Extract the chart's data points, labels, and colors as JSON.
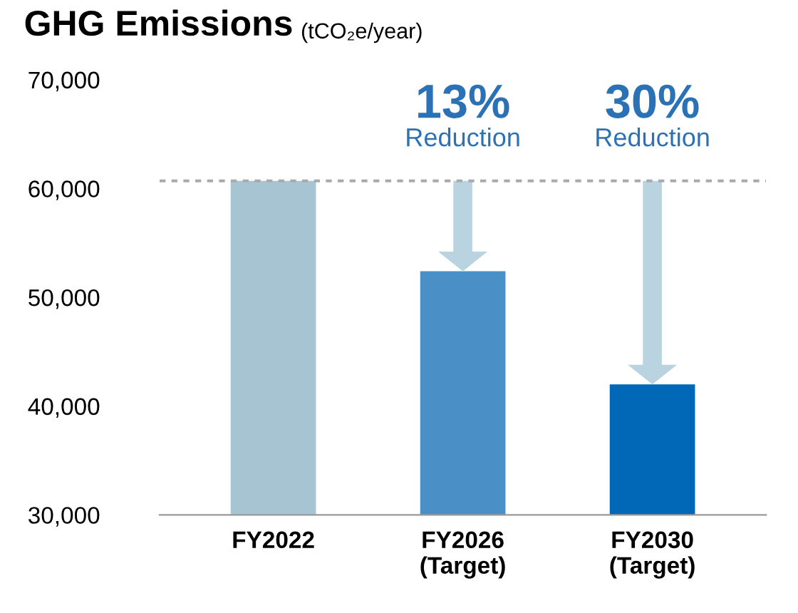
{
  "chart_data": {
    "type": "bar",
    "title": "GHG Emissions",
    "ylabel": "(tCO₂e/year)",
    "categories": [
      "FY2022",
      "FY2026\n(Target)",
      "FY2030\n(Target)"
    ],
    "values": [
      60700,
      52400,
      42000
    ],
    "colors": [
      "#a7c4d2",
      "#4a8fc6",
      "#0068b7"
    ],
    "ylim": [
      30000,
      70000
    ],
    "yticks": [
      {
        "value": 30000,
        "label": "30,000"
      },
      {
        "value": 40000,
        "label": "40,000"
      },
      {
        "value": 50000,
        "label": "50,000"
      },
      {
        "value": 60000,
        "label": "60,000"
      },
      {
        "value": 70000,
        "label": "70,000"
      }
    ],
    "grid": false,
    "ref_lines": [
      {
        "axis": "y",
        "value": 60700,
        "label": null,
        "color": "#aaaaaa",
        "line_style": "dotted"
      }
    ],
    "annotations": [
      "13%\nReduction",
      "30%\nReduction"
    ]
  }
}
